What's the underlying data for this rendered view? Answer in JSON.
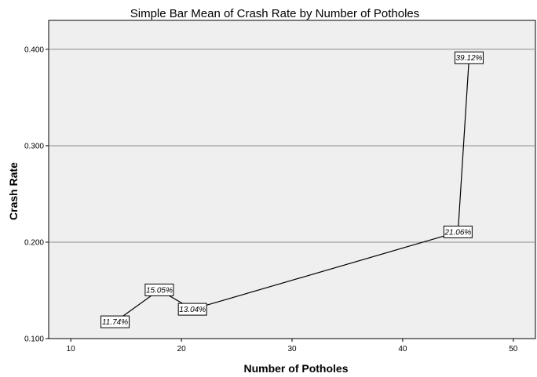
{
  "chart_data": {
    "type": "line",
    "title": "Simple Bar Mean of Crash Rate by Number of Potholes",
    "xlabel": "Number of Potholes",
    "ylabel": "Crash Rate",
    "xlim": [
      8,
      52
    ],
    "ylim": [
      0.1,
      0.43
    ],
    "x_ticks": [
      "10",
      "20",
      "30",
      "40",
      "50"
    ],
    "y_ticks": [
      "0.100",
      "0.200",
      "0.300",
      "0.400"
    ],
    "grid": "horizontal",
    "series": [
      {
        "x": [
          14,
          18,
          21,
          45,
          46
        ],
        "values": [
          0.1174,
          0.1505,
          0.1304,
          0.2106,
          0.3912
        ],
        "labels": [
          "11.74%",
          "15.05%",
          "13.04%",
          "21.06%",
          "39.12%"
        ]
      }
    ],
    "colors": {
      "plot_background": "#efefef",
      "line": "#000000",
      "gridline": "#8c8c8c"
    }
  }
}
